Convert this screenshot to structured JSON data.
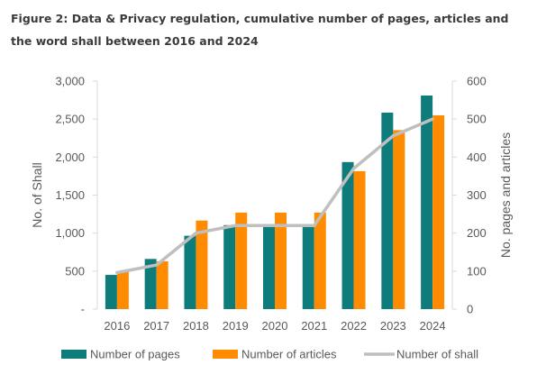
{
  "title": "Figure 2: Data & Privacy regulation, cumulative number of pages, articles and the word shall between 2016 and 2024",
  "chart_data": {
    "type": "bar",
    "title": "Figure 2: Data & Privacy regulation, cumulative number of pages, articles and the word shall between 2016 and 2024",
    "categories": [
      "2016",
      "2017",
      "2018",
      "2019",
      "2020",
      "2021",
      "2022",
      "2023",
      "2024"
    ],
    "series": [
      {
        "name": "Number of pages",
        "type": "bar",
        "axis": "right",
        "color": "#0e7c7b",
        "values": [
          90,
          132,
          193,
          221,
          221,
          221,
          387,
          517,
          562
        ]
      },
      {
        "name": "Number of articles",
        "type": "bar",
        "axis": "right",
        "color": "#ff8c00",
        "values": [
          99,
          126,
          233,
          254,
          254,
          254,
          363,
          471,
          510
        ]
      },
      {
        "name": "Number of shall",
        "type": "line",
        "axis": "left",
        "color": "#bfbfbf",
        "values": [
          480,
          580,
          1000,
          1100,
          1100,
          1100,
          1850,
          2280,
          2500
        ]
      }
    ],
    "ylabel": "No. of Shall",
    "ylim": [
      0,
      3000
    ],
    "yticks": [
      "-",
      "500",
      "1,000",
      "1,500",
      "2,000",
      "2,500",
      "3,000"
    ],
    "y2label": "No. pages and articles",
    "y2lim": [
      0,
      600
    ],
    "y2ticks": [
      "0",
      "100",
      "200",
      "300",
      "400",
      "500",
      "600"
    ],
    "grid": false,
    "legend": "bottom"
  }
}
